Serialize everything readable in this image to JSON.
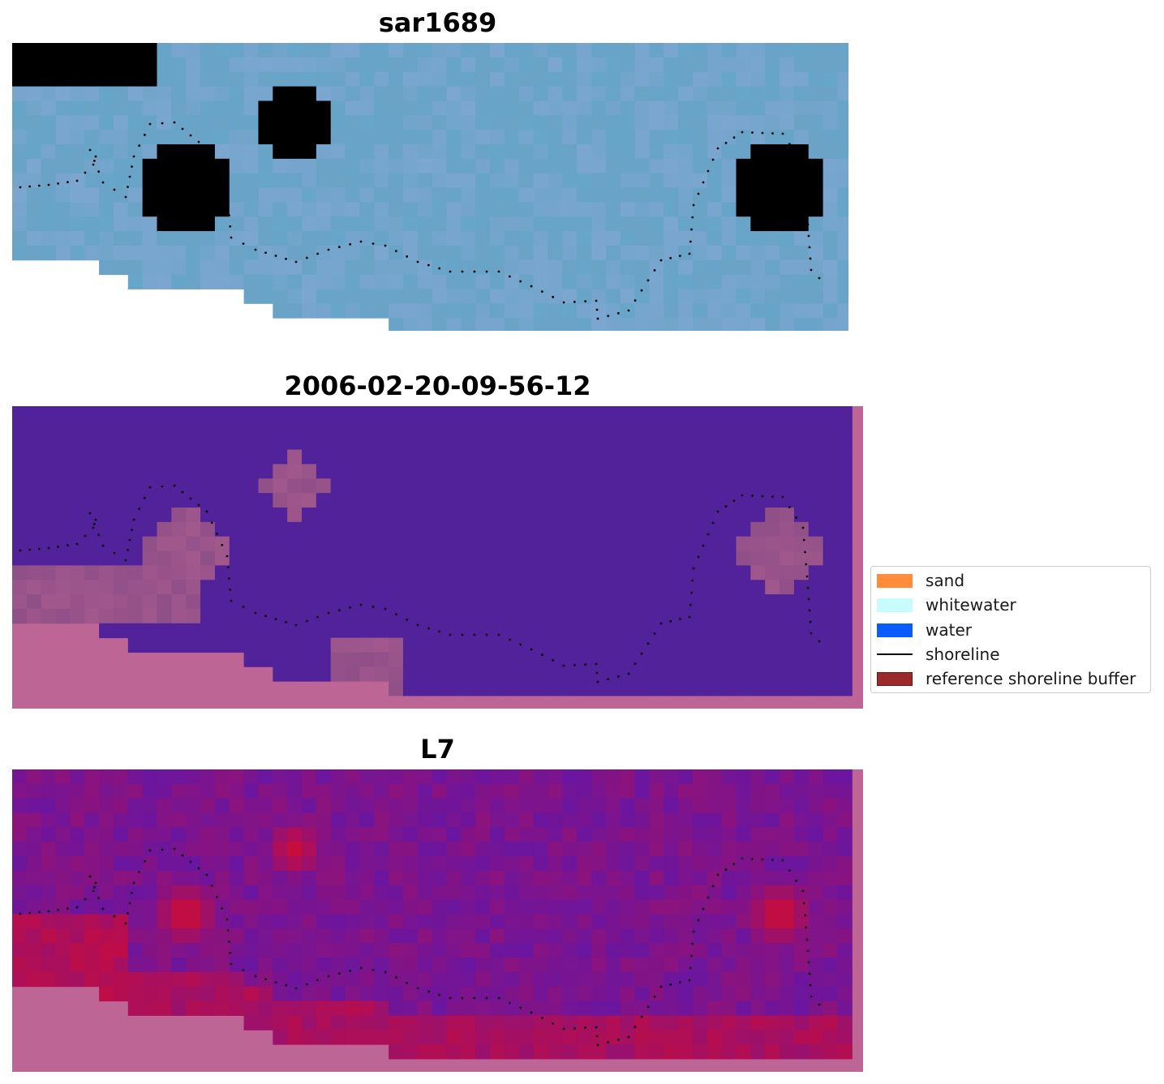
{
  "panels": [
    {
      "title": "sar1689"
    },
    {
      "title": "2006-02-20-09-56-12"
    },
    {
      "title": "L7"
    }
  ],
  "legend": {
    "items": [
      {
        "label": "sand",
        "kind": "patch",
        "color": "#ff8c3a",
        "edge": "#ff8c3a"
      },
      {
        "label": "whitewater",
        "kind": "patch",
        "color": "#c8fbfb",
        "edge": "#c8fbfb"
      },
      {
        "label": "water",
        "kind": "patch",
        "color": "#0a5cff",
        "edge": "#0a5cff"
      },
      {
        "label": "shoreline",
        "kind": "line",
        "color": "#000000"
      },
      {
        "label": "reference shoreline buffer",
        "kind": "patch",
        "color": "#9c2a2a",
        "edge": "#6e1515"
      }
    ]
  },
  "colors": {
    "rgb_water": "#6aa3c6",
    "buffer_overlay": "#bd6695",
    "class_water": "#51229a",
    "class_sand_mix": "#8f4f87",
    "index_low": "#6a16a0",
    "index_high": "#c80c3c",
    "shoreline_dots": "#000000"
  }
}
